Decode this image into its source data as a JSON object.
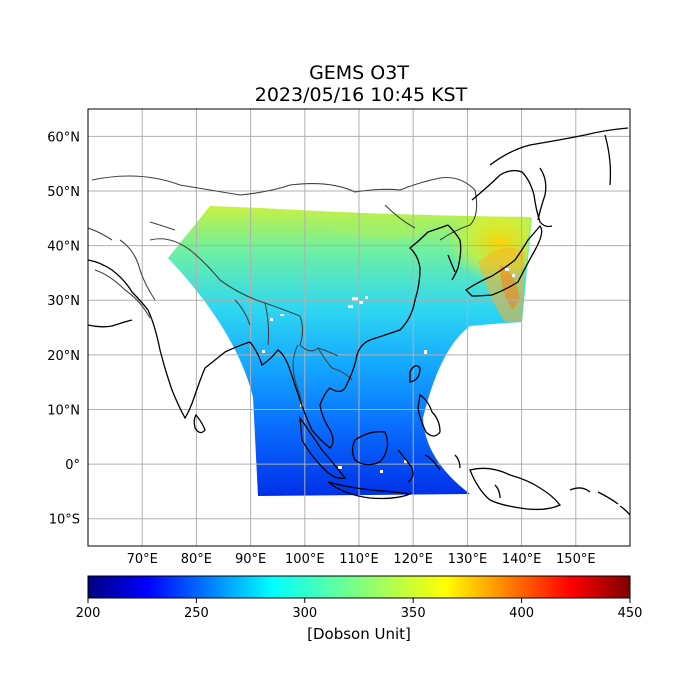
{
  "title": {
    "line1": "GEMS O3T",
    "line2": "2023/05/16 10:45 KST"
  },
  "map": {
    "lon_range": [
      60,
      160
    ],
    "lat_range": [
      -15,
      65
    ],
    "lat_ticks": [
      {
        "value": 60,
        "label": "60°N"
      },
      {
        "value": 50,
        "label": "50°N"
      },
      {
        "value": 40,
        "label": "40°N"
      },
      {
        "value": 30,
        "label": "30°N"
      },
      {
        "value": 20,
        "label": "20°N"
      },
      {
        "value": 10,
        "label": "10°N"
      },
      {
        "value": 0,
        "label": "0°"
      },
      {
        "value": -10,
        "label": "10°S"
      }
    ],
    "lon_ticks": [
      {
        "value": 70,
        "label": "70°E"
      },
      {
        "value": 80,
        "label": "80°E"
      },
      {
        "value": 90,
        "label": "90°E"
      },
      {
        "value": 100,
        "label": "100°E"
      },
      {
        "value": 110,
        "label": "110°E"
      },
      {
        "value": 120,
        "label": "120°E"
      },
      {
        "value": 130,
        "label": "130°E"
      },
      {
        "value": 140,
        "label": "140°E"
      },
      {
        "value": 150,
        "label": "150°E"
      }
    ],
    "grid": true,
    "colormap": "jet"
  },
  "colorbar": {
    "range": [
      200,
      450
    ],
    "ticks": [
      {
        "value": 200,
        "label": "200"
      },
      {
        "value": 250,
        "label": "250"
      },
      {
        "value": 300,
        "label": "300"
      },
      {
        "value": 350,
        "label": "350"
      },
      {
        "value": 400,
        "label": "400"
      },
      {
        "value": 450,
        "label": "450"
      }
    ],
    "label": "[Dobson Unit]"
  },
  "colors": {
    "coast": "#000000",
    "border": "#404040",
    "grid": "#b0b0b0"
  }
}
